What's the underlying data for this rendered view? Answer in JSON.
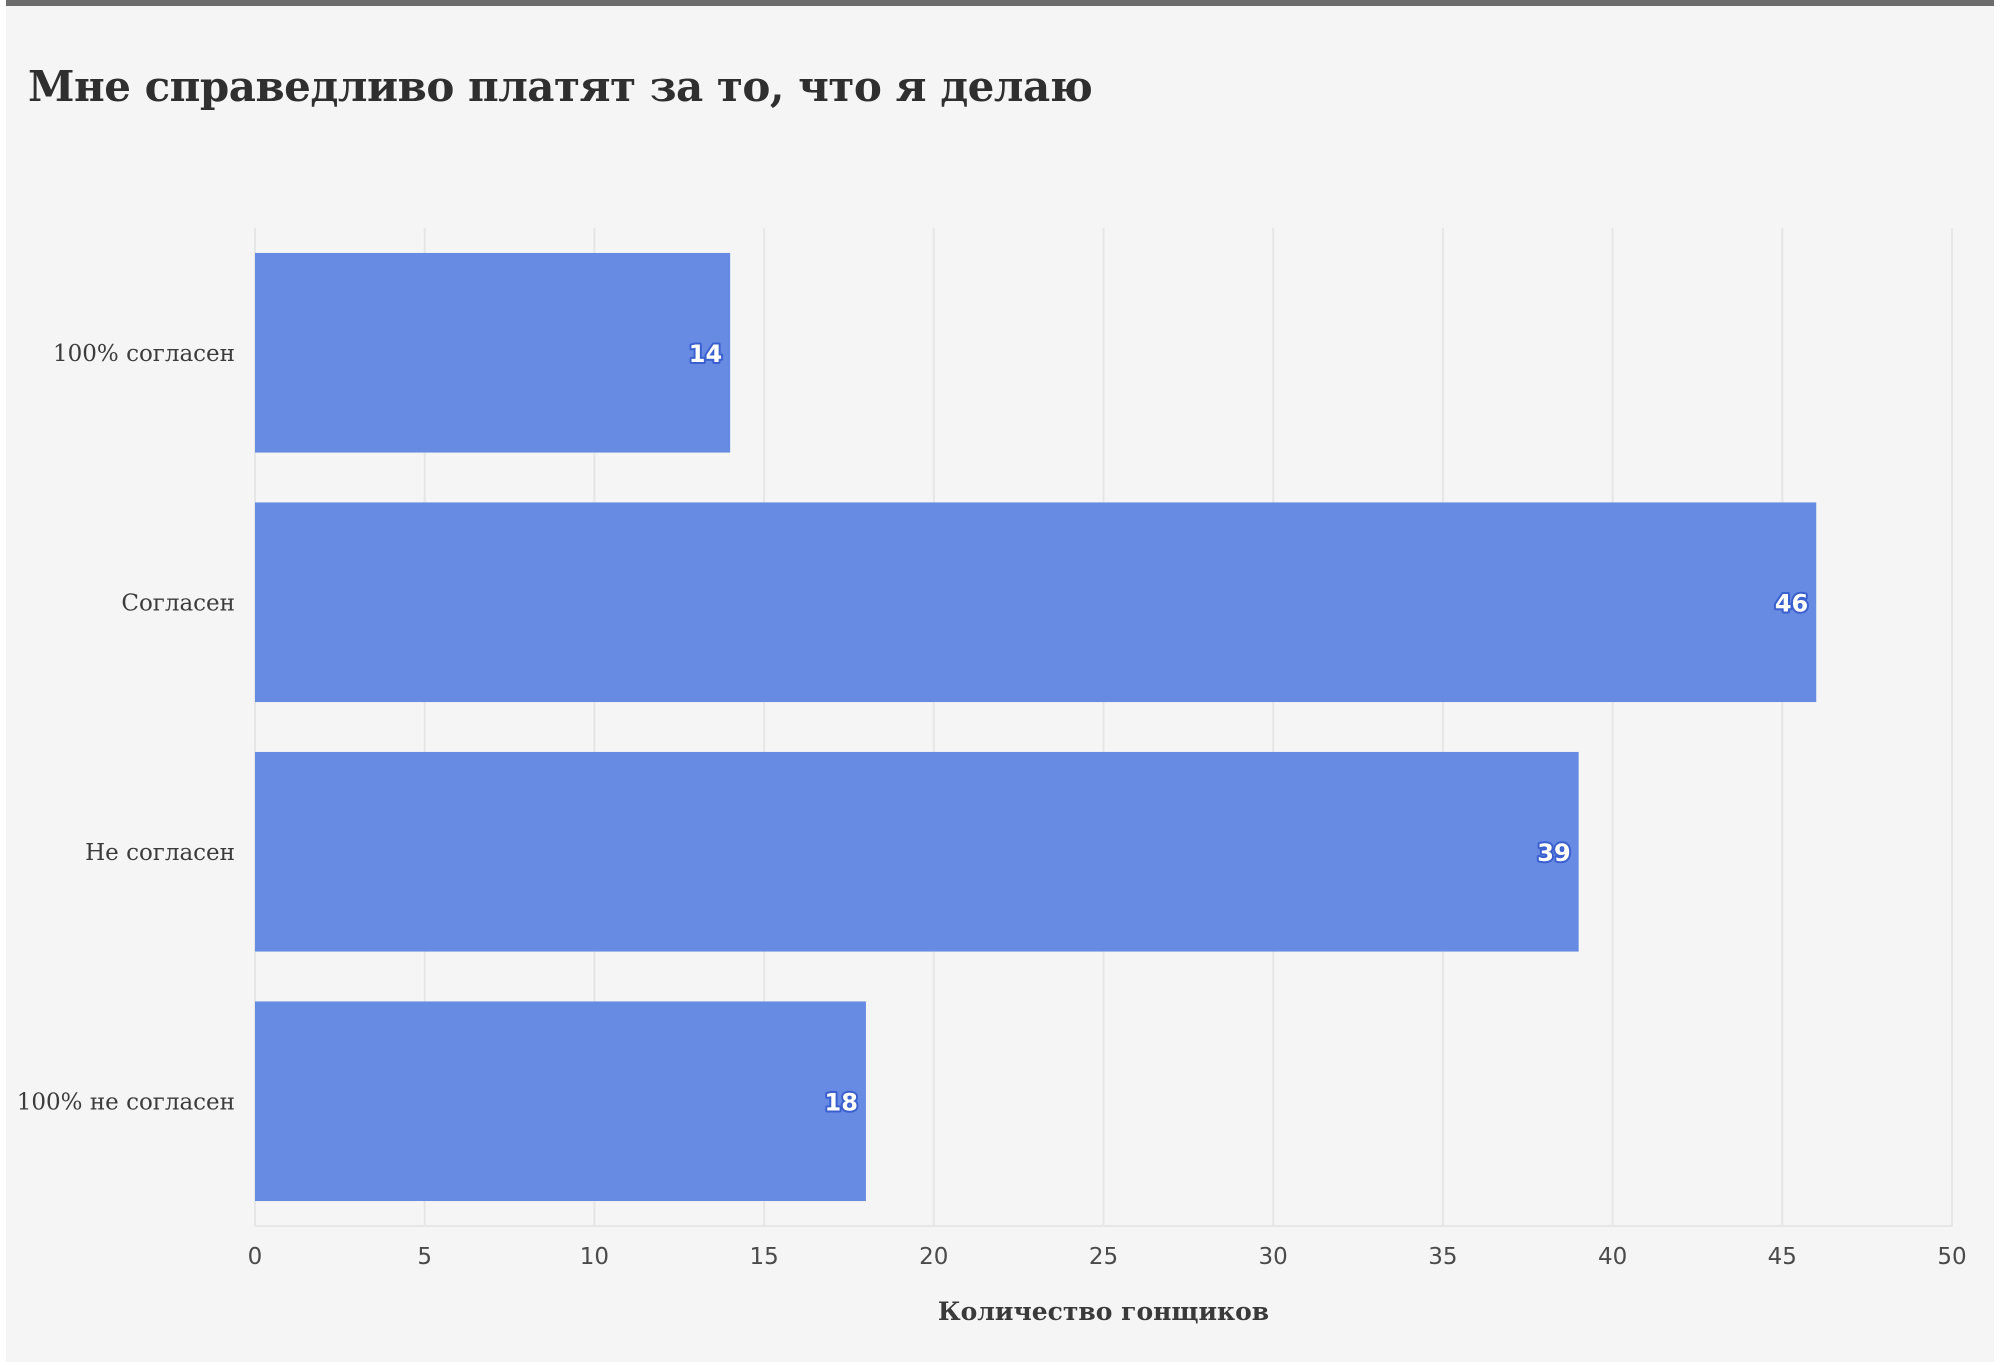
{
  "chart_data": {
    "type": "bar",
    "orientation": "horizontal",
    "title": "Мне справедливо платят за то, что я делаю",
    "categories": [
      "100% согласен",
      "Согласен",
      "Не согласен",
      "100% не согласен"
    ],
    "values": [
      14,
      46,
      39,
      18
    ],
    "xlabel": "Количество гонщиков",
    "ylabel": "",
    "xlim": [
      0,
      50
    ],
    "xticks": [
      0,
      5,
      10,
      15,
      20,
      25,
      30,
      35,
      40,
      45,
      50
    ],
    "grid": true,
    "legend": "none",
    "bar_color": "#678ae2",
    "label_outline_color": "#3a5fcf"
  }
}
